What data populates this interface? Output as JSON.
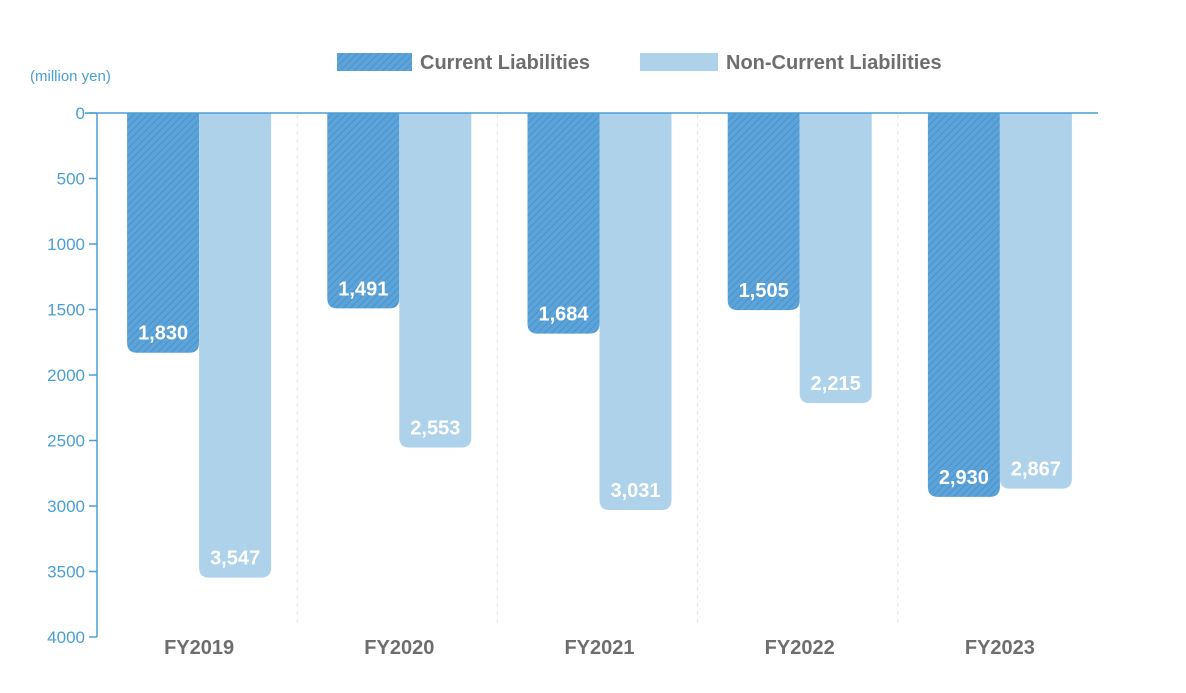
{
  "chart_data": {
    "type": "bar",
    "unit_label": "(million yen)",
    "categories": [
      "FY2019",
      "FY2020",
      "FY2021",
      "FY2022",
      "FY2023"
    ],
    "series": [
      {
        "name": "Current Liabilities",
        "values": [
          1830,
          1491,
          1684,
          1505,
          2930
        ],
        "labels": [
          "1,830",
          "1,491",
          "1,684",
          "1,505",
          "2,930"
        ],
        "color": "#5ba3d9",
        "pattern": "hatched"
      },
      {
        "name": "Non-Current Liabilities",
        "values": [
          3547,
          2553,
          3031,
          2215,
          2867
        ],
        "labels": [
          "3,547",
          "2,553",
          "3,031",
          "2,215",
          "2,867"
        ],
        "color": "#add2ea",
        "pattern": "solid"
      }
    ],
    "y_ticks": [
      "0",
      "500",
      "1000",
      "1500",
      "2000",
      "2500",
      "3000",
      "3500",
      "4000"
    ],
    "ylim": [
      0,
      4000
    ],
    "y_axis_inverted": true,
    "grid": false,
    "legend_position": "top-center"
  }
}
